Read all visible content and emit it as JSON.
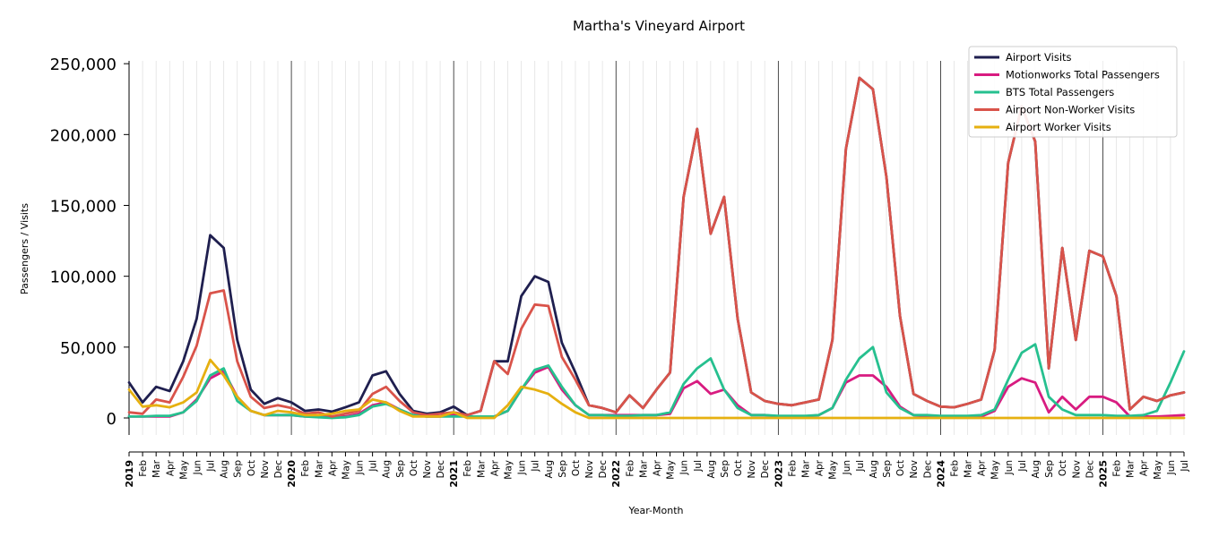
{
  "chart_data": {
    "type": "line",
    "title": "Martha's Vineyard Airport",
    "xlabel": "Year-Month",
    "ylabel": "Passengers / Visits",
    "ylim": [
      -12000,
      252000
    ],
    "yticks": [
      0,
      50000,
      100000,
      150000,
      200000,
      250000
    ],
    "ytick_labels": [
      "0",
      "50,000",
      "100,000",
      "150,000",
      "200,000",
      "250,000"
    ],
    "grid": "vertical minor per month, year separators",
    "legend_position": "top-right",
    "x": [
      "2019",
      "Feb",
      "Mar",
      "Apr",
      "May",
      "Jun",
      "Jul",
      "Aug",
      "Sep",
      "Oct",
      "Nov",
      "Dec",
      "2020",
      "Feb",
      "Mar",
      "Apr",
      "May",
      "Jun",
      "Jul",
      "Aug",
      "Sep",
      "Oct",
      "Nov",
      "Dec",
      "2021",
      "Feb",
      "Mar",
      "Apr",
      "May",
      "Jun",
      "Jul",
      "Aug",
      "Sep",
      "Oct",
      "Nov",
      "Dec",
      "2022",
      "Feb",
      "Mar",
      "Apr",
      "May",
      "Jun",
      "Jul",
      "Aug",
      "Sep",
      "Oct",
      "Nov",
      "Dec",
      "2023",
      "Feb",
      "Mar",
      "Apr",
      "May",
      "Jun",
      "Jul",
      "Aug",
      "Sep",
      "Oct",
      "Nov",
      "Dec",
      "2024",
      "Feb",
      "Mar",
      "Apr",
      "May",
      "Jun",
      "Jul",
      "Aug",
      "Sep",
      "Oct",
      "Nov",
      "Dec",
      "2025",
      "Feb",
      "Mar",
      "Apr",
      "May",
      "Jun",
      "Jul"
    ],
    "year_ticks": [
      "2019",
      "2020",
      "2021",
      "2022",
      "2023",
      "2024",
      "2025"
    ],
    "series": [
      {
        "name": "Airport Visits",
        "color": "#1f1f4f",
        "values": [
          25000,
          11000,
          22000,
          19000,
          40000,
          70000,
          129000,
          120000,
          55000,
          20000,
          10000,
          14000,
          11000,
          5000,
          6000,
          4500,
          7500,
          11000,
          30000,
          33000,
          17000,
          5000,
          3000,
          4000,
          8000,
          2000,
          5000,
          40000,
          40000,
          86000,
          100000,
          96000,
          53000,
          32000,
          9000,
          7000,
          4000,
          16000,
          7000,
          20000,
          32000,
          156000,
          204000,
          130000,
          156000,
          70000,
          18000,
          12000,
          10000,
          9000,
          11000,
          13000,
          55000,
          190000,
          240000,
          232000,
          170000,
          72000,
          17000,
          12000,
          8000,
          7500,
          10000,
          13000,
          48000,
          180000,
          220000,
          195000,
          35000,
          120000,
          55000,
          118000,
          114000,
          86000,
          6000,
          15000,
          12000,
          16000,
          18000
        ]
      },
      {
        "name": "Motionworks Total Passengers",
        "color": "#d81b80",
        "values": [
          1000,
          1000,
          1000,
          1000,
          4000,
          13000,
          28000,
          33000,
          15000,
          5000,
          2000,
          2000,
          2000,
          1000,
          1000,
          1000,
          1000,
          3000,
          9000,
          11000,
          6000,
          2000,
          1000,
          1000,
          2000,
          1000,
          1000,
          1000,
          5000,
          20000,
          32000,
          36000,
          20000,
          9000,
          2000,
          2000,
          2000,
          2000,
          2000,
          2000,
          3000,
          21000,
          26000,
          17000,
          20000,
          9000,
          2000,
          2000,
          1000,
          1000,
          1000,
          2000,
          7000,
          25000,
          30000,
          30000,
          22000,
          8000,
          2000,
          1000,
          1000,
          1000,
          1000,
          1000,
          5000,
          22000,
          28000,
          25000,
          4000,
          15000,
          6000,
          15000,
          15000,
          11000,
          1000,
          1000,
          1000,
          1500,
          2000
        ]
      },
      {
        "name": "BTS Total Passengers",
        "color": "#26c08f",
        "values": [
          1000,
          1000,
          1500,
          1500,
          4000,
          12000,
          30000,
          35000,
          12000,
          5000,
          2000,
          2000,
          2000,
          1000,
          500,
          0,
          500,
          2000,
          8000,
          10000,
          6000,
          2000,
          1000,
          1000,
          1000,
          1000,
          1000,
          1000,
          5000,
          20000,
          34000,
          37000,
          22000,
          9000,
          2000,
          2000,
          1500,
          1500,
          2000,
          2000,
          4000,
          24000,
          35000,
          42000,
          20000,
          7000,
          2000,
          2000,
          1500,
          1500,
          1500,
          2000,
          7000,
          27000,
          42000,
          50000,
          18000,
          7000,
          2000,
          2000,
          1500,
          1500,
          1500,
          2000,
          6000,
          27000,
          46000,
          52000,
          15000,
          6000,
          2000,
          2000,
          2000,
          1500,
          1500,
          2000,
          5000,
          25000,
          47000
        ]
      },
      {
        "name": "Airport Non-Worker Visits",
        "color": "#d9534a",
        "values": [
          4000,
          3000,
          13000,
          11000,
          29000,
          51000,
          88000,
          90000,
          40000,
          15000,
          7000,
          9000,
          7000,
          3000,
          4000,
          1000,
          3000,
          5000,
          17000,
          22000,
          12000,
          4000,
          2000,
          3000,
          4000,
          2000,
          5000,
          40000,
          31000,
          63000,
          80000,
          79000,
          43000,
          27000,
          9000,
          7000,
          4000,
          16000,
          7000,
          20000,
          32000,
          156000,
          204000,
          130000,
          156000,
          70000,
          18000,
          12000,
          10000,
          9000,
          11000,
          13000,
          55000,
          190000,
          240000,
          232000,
          170000,
          72000,
          17000,
          12000,
          8000,
          7500,
          10000,
          13000,
          48000,
          180000,
          220000,
          195000,
          35000,
          120000,
          55000,
          118000,
          114000,
          86000,
          6000,
          15000,
          12000,
          16000,
          18000
        ]
      },
      {
        "name": "Airport Worker Visits",
        "color": "#e6b010",
        "values": [
          20000,
          8000,
          9000,
          7500,
          11000,
          18000,
          41000,
          30000,
          15000,
          5000,
          2000,
          5000,
          4000,
          2000,
          2000,
          3000,
          5000,
          6000,
          13000,
          11000,
          5000,
          1000,
          1000,
          1000,
          4000,
          0,
          0,
          0,
          9000,
          22000,
          20000,
          17000,
          10000,
          4000,
          0,
          0,
          0,
          0,
          0,
          0,
          0,
          0,
          0,
          0,
          0,
          0,
          0,
          0,
          0,
          0,
          0,
          0,
          0,
          0,
          0,
          0,
          0,
          0,
          0,
          0,
          0,
          0,
          0,
          0,
          0,
          0,
          0,
          0,
          0,
          0,
          0,
          0,
          0,
          0,
          0,
          0,
          0,
          0,
          0
        ]
      }
    ]
  }
}
